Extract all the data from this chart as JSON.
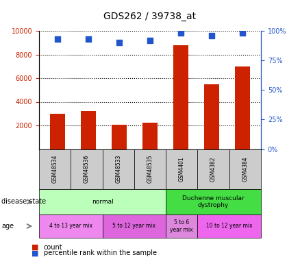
{
  "title": "GDS262 / 39738_at",
  "samples": [
    "GSM48534",
    "GSM48536",
    "GSM48533",
    "GSM48535",
    "GSM4401",
    "GSM4382",
    "GSM4384"
  ],
  "count_values": [
    3000,
    3200,
    2050,
    2250,
    8800,
    5500,
    7000
  ],
  "percentile_values": [
    93,
    93,
    90,
    92,
    98,
    96,
    98
  ],
  "bar_color": "#cc2200",
  "dot_color": "#2255cc",
  "ylim_left": [
    0,
    10000
  ],
  "ylim_right": [
    0,
    100
  ],
  "yticks_left": [
    2000,
    4000,
    6000,
    8000,
    10000
  ],
  "yticks_right": [
    0,
    25,
    50,
    75,
    100
  ],
  "disease_state_groups": [
    {
      "label": "normal",
      "start": 0,
      "end": 4,
      "color": "#bbffbb"
    },
    {
      "label": "Duchenne muscular\ndystrophy",
      "start": 4,
      "end": 7,
      "color": "#44dd44"
    }
  ],
  "age_groups": [
    {
      "label": "4 to 13 year mix",
      "start": 0,
      "end": 2,
      "color": "#ee88ee"
    },
    {
      "label": "5 to 12 year mix",
      "start": 2,
      "end": 4,
      "color": "#dd66dd"
    },
    {
      "label": "5 to 6\nyear mix",
      "start": 4,
      "end": 5,
      "color": "#dd88dd"
    },
    {
      "label": "10 to 12 year mix",
      "start": 5,
      "end": 7,
      "color": "#ee66ee"
    }
  ],
  "legend_count_label": "count",
  "legend_pct_label": "percentile rank within the sample",
  "disease_state_label": "disease state",
  "age_label": "age"
}
